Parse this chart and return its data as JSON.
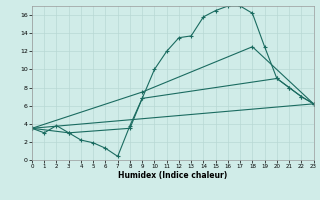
{
  "xlabel": "Humidex (Indice chaleur)",
  "bg_color": "#d0ece8",
  "line_color": "#1a6b60",
  "grid_color": "#b8d8d4",
  "xlim": [
    0,
    23
  ],
  "ylim": [
    0,
    17
  ],
  "xticks": [
    0,
    1,
    2,
    3,
    4,
    5,
    6,
    7,
    8,
    9,
    10,
    11,
    12,
    13,
    14,
    15,
    16,
    17,
    18,
    19,
    20,
    21,
    22,
    23
  ],
  "yticks": [
    0,
    2,
    4,
    6,
    8,
    10,
    12,
    14,
    16
  ],
  "line1_x": [
    0,
    1,
    2,
    3,
    4,
    5,
    6,
    7,
    8,
    9,
    10,
    11,
    12,
    13,
    14,
    15,
    16,
    17,
    18,
    19,
    20,
    21,
    22,
    23
  ],
  "line1_y": [
    3.5,
    3.0,
    3.8,
    3.0,
    2.2,
    1.9,
    1.3,
    0.4,
    3.8,
    6.8,
    10.0,
    12.0,
    13.5,
    13.7,
    15.8,
    16.5,
    17.0,
    17.0,
    16.2,
    12.5,
    9.0,
    8.0,
    7.0,
    6.2
  ],
  "line2_x": [
    0,
    3,
    8,
    9,
    20,
    21,
    22,
    23
  ],
  "line2_y": [
    3.5,
    3.0,
    3.5,
    6.8,
    9.0,
    8.0,
    7.0,
    6.2
  ],
  "line3_x": [
    0,
    23
  ],
  "line3_y": [
    3.5,
    6.2
  ],
  "line4_x": [
    0,
    9,
    18,
    23
  ],
  "line4_y": [
    3.5,
    7.5,
    12.5,
    6.2
  ]
}
